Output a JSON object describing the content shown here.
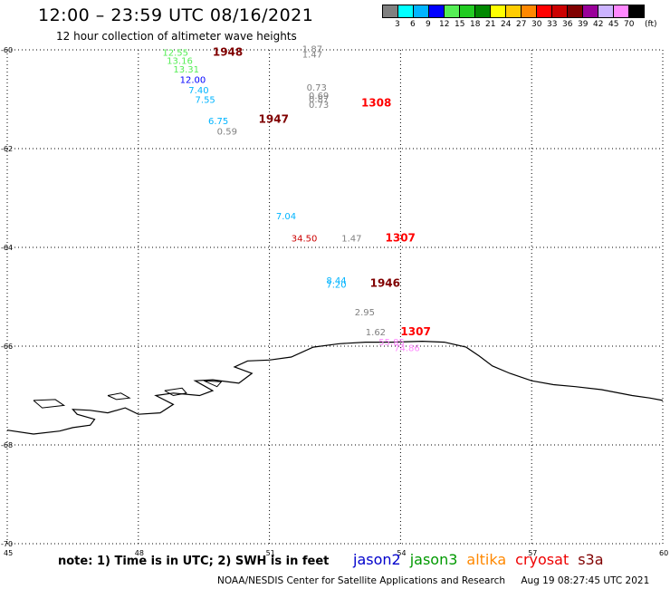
{
  "header": {
    "title": "12:00 – 23:59 UTC 08/16/2021",
    "subtitle": "12 hour collection of altimeter wave heights"
  },
  "colorbar": {
    "colors": [
      "#808080",
      "#00ffff",
      "#00b4ff",
      "#0000ff",
      "#55ee55",
      "#22cc22",
      "#008800",
      "#ffff00",
      "#ffcc00",
      "#ff8800",
      "#ff0000",
      "#cc0000",
      "#800000",
      "#990099",
      "#ccb3ff",
      "#ff88ff",
      "#000000"
    ],
    "labels": [
      "3",
      "6",
      "9",
      "12",
      "15",
      "18",
      "21",
      "24",
      "27",
      "30",
      "33",
      "36",
      "39",
      "42",
      "45",
      "70"
    ],
    "unit": "(ft)"
  },
  "map": {
    "lat_ticks": [
      "-60",
      "-62",
      "-64",
      "-66",
      "-68",
      "-70"
    ],
    "lon_ticks": [
      "45",
      "48",
      "51",
      "54",
      "57",
      "60"
    ],
    "coastline": [
      [
        45,
        -67.7
      ],
      [
        45.6,
        -67.78
      ],
      [
        46.2,
        -67.72
      ],
      [
        46.5,
        -67.65
      ],
      [
        46.9,
        -67.6
      ],
      [
        47.0,
        -67.48
      ],
      [
        46.6,
        -67.38
      ],
      [
        46.5,
        -67.28
      ],
      [
        46.9,
        -67.3
      ],
      [
        47.3,
        -67.35
      ],
      [
        47.7,
        -67.25
      ],
      [
        48.0,
        -67.38
      ],
      [
        48.5,
        -67.35
      ],
      [
        48.8,
        -67.18
      ],
      [
        48.4,
        -67.0
      ],
      [
        48.8,
        -66.95
      ],
      [
        49.4,
        -67.0
      ],
      [
        49.7,
        -66.9
      ],
      [
        49.3,
        -66.7
      ],
      [
        49.7,
        -66.68
      ],
      [
        50.3,
        -66.75
      ],
      [
        50.6,
        -66.55
      ],
      [
        50.2,
        -66.42
      ],
      [
        50.5,
        -66.3
      ],
      [
        51.0,
        -66.28
      ],
      [
        51.5,
        -66.22
      ],
      [
        52.0,
        -66.02
      ],
      [
        52.6,
        -65.95
      ],
      [
        53.2,
        -65.92
      ],
      [
        53.8,
        -65.92
      ],
      [
        54.5,
        -65.9
      ],
      [
        55.0,
        -65.92
      ],
      [
        55.5,
        -66.02
      ],
      [
        55.8,
        -66.2
      ],
      [
        56.1,
        -66.4
      ],
      [
        56.5,
        -66.55
      ],
      [
        57.0,
        -66.7
      ],
      [
        57.5,
        -66.78
      ],
      [
        58.0,
        -66.82
      ],
      [
        58.6,
        -66.88
      ],
      [
        59.3,
        -67.0
      ],
      [
        59.7,
        -67.05
      ],
      [
        60,
        -67.1
      ]
    ],
    "islands": [
      [
        [
          45.6,
          -67.1
        ],
        [
          46.1,
          -67.08
        ],
        [
          46.3,
          -67.2
        ],
        [
          45.8,
          -67.25
        ],
        [
          45.6,
          -67.1
        ]
      ],
      [
        [
          47.3,
          -67.0
        ],
        [
          47.6,
          -66.95
        ],
        [
          47.8,
          -67.05
        ],
        [
          47.5,
          -67.08
        ],
        [
          47.3,
          -67.0
        ]
      ],
      [
        [
          48.6,
          -66.9
        ],
        [
          49.0,
          -66.85
        ],
        [
          49.1,
          -66.95
        ],
        [
          48.8,
          -67.0
        ],
        [
          48.6,
          -66.9
        ]
      ],
      [
        [
          49.5,
          -66.7
        ],
        [
          49.9,
          -66.72
        ],
        [
          49.8,
          -66.82
        ],
        [
          49.5,
          -66.7
        ]
      ]
    ]
  },
  "observations": [
    {
      "lon": 48.55,
      "lat": -60.12,
      "value": "12.55",
      "color": "#55ee55"
    },
    {
      "lon": 48.65,
      "lat": -60.28,
      "value": "13.16",
      "color": "#55ee55"
    },
    {
      "lon": 48.8,
      "lat": -60.46,
      "value": "13.31",
      "color": "#55ee55"
    },
    {
      "lon": 48.95,
      "lat": -60.67,
      "value": "12.00",
      "color": "#0000ff"
    },
    {
      "lon": 49.15,
      "lat": -60.88,
      "value": "7.40",
      "color": "#00b4ff"
    },
    {
      "lon": 49.3,
      "lat": -61.07,
      "value": "7.55",
      "color": "#00b4ff"
    },
    {
      "lon": 49.6,
      "lat": -61.5,
      "value": "6.75",
      "color": "#00b4ff"
    },
    {
      "lon": 49.8,
      "lat": -61.72,
      "value": "0.59",
      "color": "#808080"
    },
    {
      "lon": 51.75,
      "lat": -60.05,
      "value": "1.87",
      "color": "#808080"
    },
    {
      "lon": 51.75,
      "lat": -60.16,
      "value": "1.47",
      "color": "#808080"
    },
    {
      "lon": 51.85,
      "lat": -60.83,
      "value": "0.73",
      "color": "#808080"
    },
    {
      "lon": 51.9,
      "lat": -60.99,
      "value": "0.69",
      "color": "#808080"
    },
    {
      "lon": 51.9,
      "lat": -61.06,
      "value": "0.87",
      "color": "#808080"
    },
    {
      "lon": 51.9,
      "lat": -61.17,
      "value": "0.73",
      "color": "#808080"
    },
    {
      "lon": 51.15,
      "lat": -63.43,
      "value": "7.04",
      "color": "#00b4ff"
    },
    {
      "lon": 51.5,
      "lat": -63.88,
      "value": "34.50",
      "color": "#cc0000"
    },
    {
      "lon": 52.65,
      "lat": -63.88,
      "value": "1.47",
      "color": "#808080"
    },
    {
      "lon": 52.3,
      "lat": -64.73,
      "value": "8.44",
      "color": "#00b4ff"
    },
    {
      "lon": 52.3,
      "lat": -64.82,
      "value": "7.20",
      "color": "#00b4ff"
    },
    {
      "lon": 52.95,
      "lat": -65.38,
      "value": "2.95",
      "color": "#808080"
    },
    {
      "lon": 53.2,
      "lat": -65.78,
      "value": "1.62",
      "color": "#808080"
    },
    {
      "lon": 53.5,
      "lat": -65.98,
      "value": "55.85",
      "color": "#ff88ff"
    },
    {
      "lon": 53.85,
      "lat": -66.1,
      "value": "74.86",
      "color": "#ff88ff"
    }
  ],
  "time_labels": [
    {
      "lon": 49.7,
      "lat": -60.12,
      "value": "1948",
      "color": "#800000"
    },
    {
      "lon": 50.75,
      "lat": -61.48,
      "value": "1947",
      "color": "#800000"
    },
    {
      "lon": 53.1,
      "lat": -61.15,
      "value": "1308",
      "color": "#ff0000"
    },
    {
      "lon": 53.65,
      "lat": -63.88,
      "value": "1307",
      "color": "#ff0000"
    },
    {
      "lon": 53.3,
      "lat": -64.8,
      "value": "1946",
      "color": "#800000"
    },
    {
      "lon": 54.0,
      "lat": -65.78,
      "value": "1307",
      "color": "#ff0000"
    }
  ],
  "note": "note: 1) Time is in UTC; 2) SWH is in feet",
  "satellites": [
    {
      "name": "jason2",
      "color": "#0000cc"
    },
    {
      "name": "jason3",
      "color": "#009900"
    },
    {
      "name": "altika",
      "color": "#ff8800"
    },
    {
      "name": "cryosat",
      "color": "#ee0000"
    },
    {
      "name": "s3a",
      "color": "#800000"
    }
  ],
  "footer": {
    "org": "NOAA/NESDIS Center for Satellite Applications and Research",
    "timestamp": "Aug 19 08:27:45 UTC 2021"
  }
}
